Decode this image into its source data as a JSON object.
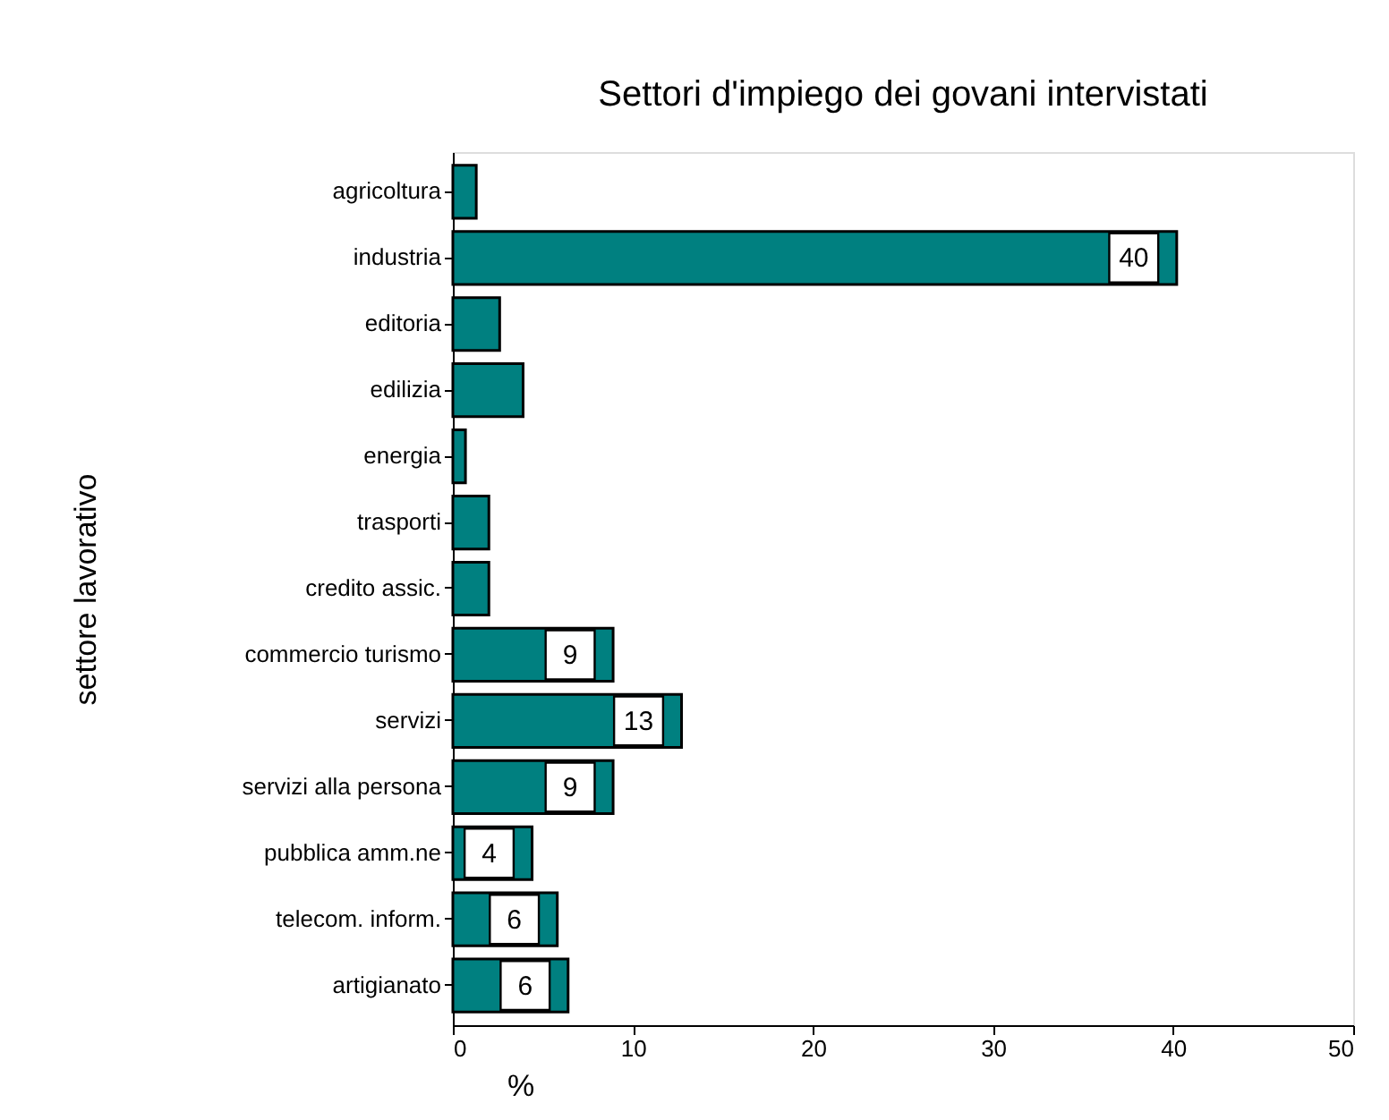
{
  "chart_data": {
    "type": "bar",
    "orientation": "horizontal",
    "title": "Settori d'impiego dei govani intervistati",
    "xlabel": "%",
    "ylabel": "settore lavorativo",
    "categories": [
      "agricoltura",
      "industria",
      "editoria",
      "edilizia",
      "energia",
      "trasporti",
      "credito assic.",
      "commercio turismo",
      "servizi",
      "servizi alla persona",
      "pubblica amm.ne",
      "telecom. inform.",
      "artigianato"
    ],
    "values": [
      1.3,
      40.2,
      2.6,
      3.9,
      0.7,
      2.0,
      2.0,
      8.9,
      12.7,
      8.9,
      4.4,
      5.8,
      6.4
    ],
    "value_labels": [
      null,
      "40",
      null,
      null,
      null,
      null,
      null,
      "9",
      "13",
      "9",
      "4",
      "6",
      "6"
    ],
    "color": "#008080",
    "xlim": [
      0,
      50
    ],
    "xticks": [
      0,
      10,
      20,
      30,
      40,
      50
    ],
    "grid": false
  }
}
